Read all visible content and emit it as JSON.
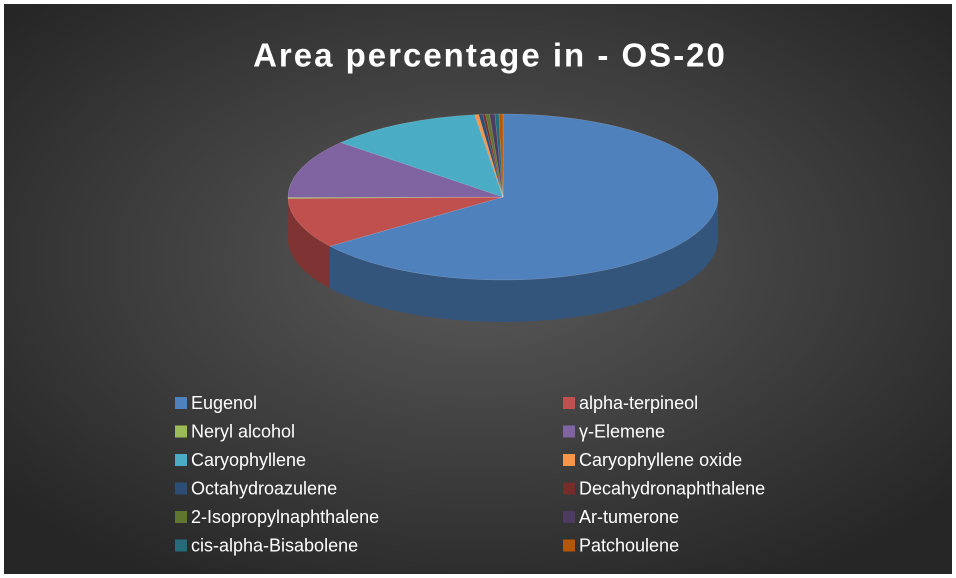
{
  "chart_data": {
    "type": "pie",
    "title": "Area percentage in - OS-20",
    "categories": [
      "Eugenol",
      "alpha-terpineol",
      "Neryl alcohol",
      "γ-Elemene",
      "Caryophyllene",
      "Caryophyllene oxide",
      "Octahydroazulene",
      "Decahydronaphthalene",
      "2-Isopropylnaphthalene",
      "Ar-tumerone",
      "cis-alpha-Bisabolene",
      "Patchoulene"
    ],
    "values": [
      64.9,
      9.8,
      0.2,
      11.5,
      11.5,
      0.3,
      0.3,
      0.2,
      0.3,
      0.4,
      0.3,
      0.3
    ],
    "colors": [
      "#4f81bd",
      "#c0504d",
      "#9bbb59",
      "#8064a2",
      "#4bacc6",
      "#f79646",
      "#2c4d75",
      "#772c2a",
      "#5f7530",
      "#4d3b62",
      "#276a7c",
      "#b65708"
    ],
    "legend": "bottom"
  }
}
